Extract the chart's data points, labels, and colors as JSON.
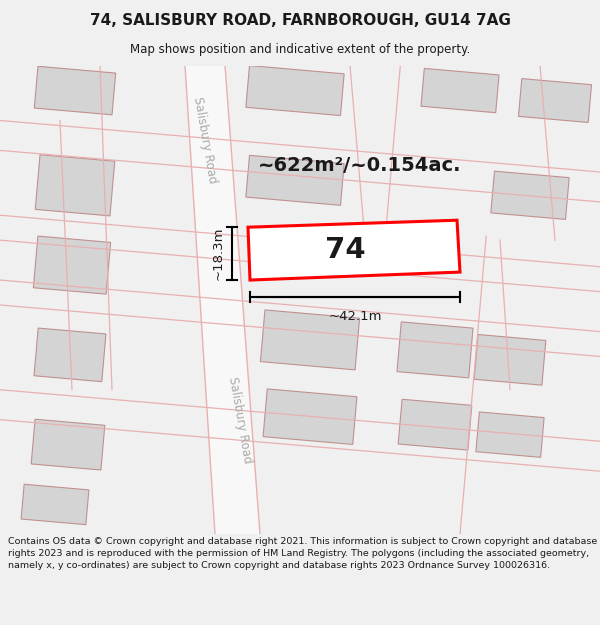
{
  "title": "74, SALISBURY ROAD, FARNBOROUGH, GU14 7AG",
  "subtitle": "Map shows position and indicative extent of the property.",
  "footer": "Contains OS data © Crown copyright and database right 2021. This information is subject to Crown copyright and database rights 2023 and is reproduced with the permission of HM Land Registry. The polygons (including the associated geometry, namely x, y co-ordinates) are subject to Crown copyright and database rights 2023 Ordnance Survey 100026316.",
  "background_color": "#f0f0f0",
  "map_background": "#ffffff",
  "building_color": "#d4d4d4",
  "building_edge": "#c09090",
  "road_line_color": "#e8b0b0",
  "highlight_color": "#ff0000",
  "highlight_fill": "#ffffff",
  "text_color": "#1a1a1a",
  "dim_label": "~622m²/~0.154ac.",
  "width_label": "~42.1m",
  "height_label": "~18.3m",
  "number_label": "74",
  "road_label_top": "Salisbury Road",
  "road_label_bottom": "Salisbury Road"
}
